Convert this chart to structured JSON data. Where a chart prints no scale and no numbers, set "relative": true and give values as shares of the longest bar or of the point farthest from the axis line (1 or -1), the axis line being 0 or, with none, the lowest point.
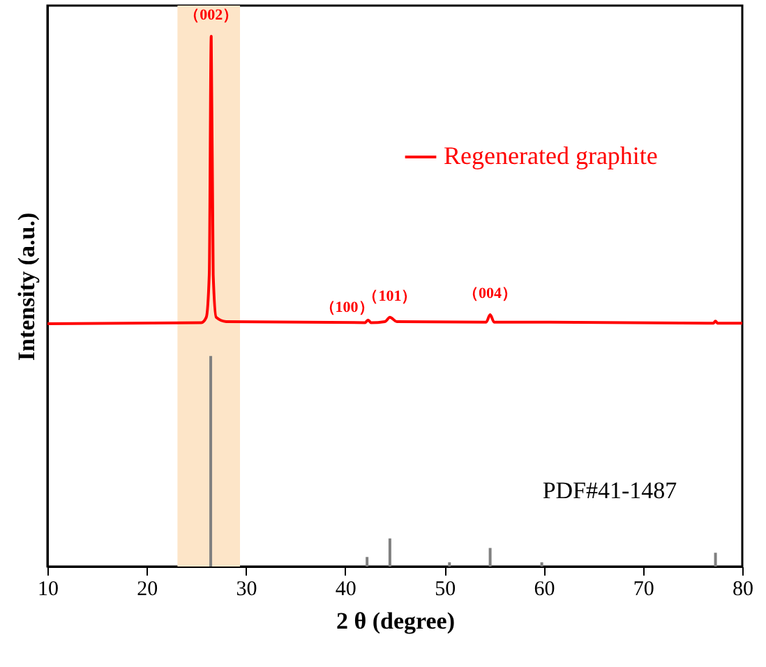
{
  "chart_data": {
    "type": "line",
    "xlabel": "2 θ (degree)",
    "ylabel": "Intensity (a.u.)",
    "xlim": [
      10,
      80
    ],
    "xticks": [
      10,
      20,
      30,
      40,
      50,
      60,
      70,
      80
    ],
    "relative": true,
    "legend": "top right",
    "series": [
      {
        "name": "Regenerated graphite",
        "color": "#ff0000",
        "x": [
          10,
          25.5,
          26.0,
          26.3,
          26.5,
          26.7,
          27.0,
          28,
          42.0,
          42.3,
          42.6,
          44.0,
          44.5,
          45.2,
          54.2,
          54.6,
          55.0,
          60,
          77.1,
          77.3,
          77.5,
          80
        ],
        "values": [
          0.458,
          0.46,
          0.47,
          0.55,
          1,
          0.55,
          0.47,
          0.462,
          0.46,
          0.465,
          0.46,
          0.462,
          0.47,
          0.462,
          0.461,
          0.475,
          0.461,
          0.461,
          0.459,
          0.463,
          0.459,
          0.459
        ]
      },
      {
        "name": "PDF#41-1487",
        "color": "#808080",
        "type": "bar",
        "x": [
          26.45,
          42.2,
          44.5,
          50.5,
          54.6,
          59.8,
          77.3
        ],
        "values": [
          0.397,
          0.018,
          0.053,
          0.008,
          0.035,
          0.008,
          0.026
        ]
      }
    ],
    "bands": [
      {
        "axis": "x",
        "from": 23.1,
        "to": 29.4,
        "color": "#fde5c8"
      }
    ],
    "annotations": [
      {
        "text": "（002）",
        "x": 26.5,
        "y": 1
      },
      {
        "text": "（100）",
        "x": 42.3,
        "y": 0.465
      },
      {
        "text": "（101）",
        "x": 44.5,
        "y": 0.47
      },
      {
        "text": "（004）",
        "x": 54.6,
        "y": 0.475
      }
    ]
  }
}
